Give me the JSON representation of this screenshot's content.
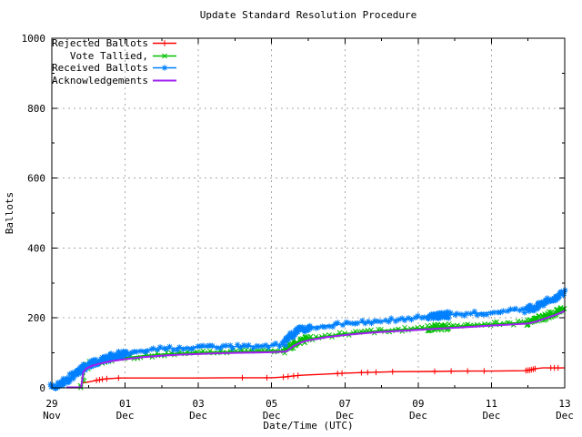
{
  "chart_data": {
    "type": "line",
    "title": "Update Standard Resolution Procedure",
    "xlabel": "Date/Time (UTC)",
    "ylabel": "Ballots",
    "ylim": [
      0,
      1000
    ],
    "xlim_days": [
      0,
      14
    ],
    "x_axis_note": "days measured from 29 Nov 00:00 UTC to 13 Dec",
    "grid": "on",
    "grid_color": "#a8a8a8",
    "legend_position": "top-left",
    "x_ticks": [
      {
        "day": 0,
        "line1": "29",
        "line2": "Nov"
      },
      {
        "day": 2,
        "line1": "01",
        "line2": "Dec"
      },
      {
        "day": 4,
        "line1": "03",
        "line2": "Dec"
      },
      {
        "day": 6,
        "line1": "05",
        "line2": "Dec"
      },
      {
        "day": 8,
        "line1": "07",
        "line2": "Dec"
      },
      {
        "day": 10,
        "line1": "09",
        "line2": "Dec"
      },
      {
        "day": 12,
        "line1": "11",
        "line2": "Dec"
      },
      {
        "day": 14,
        "line1": "13",
        "line2": "Dec"
      }
    ],
    "x_minor_days": [
      1,
      3,
      5,
      7,
      9,
      11,
      13
    ],
    "y_ticks": [
      0,
      200,
      400,
      600,
      800,
      1000
    ],
    "y_minor": [
      100,
      300,
      500,
      700,
      900
    ],
    "series": [
      {
        "name": "Rejected Ballots",
        "color": "#ff0000",
        "marker": "plus",
        "line_width": 1.4,
        "points": [
          [
            0.8,
            0
          ],
          [
            0.84,
            14
          ],
          [
            1.0,
            17
          ],
          [
            1.2,
            21
          ],
          [
            1.35,
            24
          ],
          [
            1.5,
            26
          ],
          [
            1.85,
            28
          ],
          [
            2.5,
            28
          ],
          [
            4.0,
            28
          ],
          [
            5.2,
            29
          ],
          [
            6.0,
            29
          ],
          [
            6.35,
            31
          ],
          [
            6.6,
            34
          ],
          [
            6.8,
            36
          ],
          [
            7.0,
            37
          ],
          [
            7.8,
            41
          ],
          [
            8.0,
            42
          ],
          [
            8.6,
            44
          ],
          [
            9.0,
            45
          ],
          [
            9.3,
            46
          ],
          [
            10.4,
            47
          ],
          [
            11.2,
            48
          ],
          [
            12.0,
            48
          ],
          [
            12.9,
            49
          ],
          [
            13.0,
            50
          ],
          [
            13.1,
            52
          ],
          [
            13.2,
            55
          ],
          [
            13.4,
            57
          ],
          [
            14.0,
            57
          ]
        ],
        "marker_days": [
          1.22,
          1.3,
          1.38,
          1.5,
          1.82,
          5.2,
          5.87,
          6.32,
          6.45,
          6.6,
          6.72,
          7.8,
          7.92,
          8.45,
          8.62,
          8.85,
          9.3,
          10.45,
          10.9,
          11.35,
          11.8,
          12.94,
          12.99,
          13.04,
          13.09,
          13.14,
          13.19,
          13.62,
          13.72,
          13.82
        ]
      },
      {
        "name": "Vote Tallied,",
        "color": "#00c000",
        "marker": "cross",
        "line_width": 1.4,
        "points": [
          [
            0.82,
            1
          ],
          [
            0.86,
            30
          ],
          [
            0.9,
            60
          ],
          [
            1.0,
            66
          ],
          [
            1.2,
            72
          ],
          [
            1.4,
            77
          ],
          [
            1.7,
            82
          ],
          [
            2.0,
            86
          ],
          [
            2.5,
            92
          ],
          [
            3.0,
            96
          ],
          [
            3.5,
            99
          ],
          [
            4.0,
            101
          ],
          [
            4.5,
            103
          ],
          [
            5.0,
            104
          ],
          [
            5.5,
            105
          ],
          [
            6.0,
            106
          ],
          [
            6.35,
            107
          ],
          [
            6.5,
            118
          ],
          [
            6.7,
            130
          ],
          [
            6.9,
            137
          ],
          [
            7.0,
            140
          ],
          [
            7.5,
            148
          ],
          [
            8.0,
            155
          ],
          [
            8.5,
            160
          ],
          [
            9.0,
            164
          ],
          [
            9.5,
            167
          ],
          [
            10.0,
            170
          ],
          [
            10.5,
            173
          ],
          [
            11.0,
            176
          ],
          [
            11.5,
            179
          ],
          [
            12.0,
            182
          ],
          [
            12.5,
            185
          ],
          [
            13.0,
            188
          ],
          [
            13.2,
            193
          ],
          [
            13.4,
            200
          ],
          [
            13.6,
            208
          ],
          [
            13.8,
            216
          ],
          [
            14.0,
            226
          ]
        ],
        "scatter": {
          "step": 0.09,
          "jitter_x": 1.2,
          "jitter_y": 2.2,
          "dense_step": 0.032,
          "dense_jitter_x": 2,
          "dense_jitter_y": 3.5,
          "dense_ranges": [
            [
              0.82,
              1.05
            ],
            [
              6.35,
              7.05
            ],
            [
              10.25,
              10.8
            ],
            [
              12.95,
              14.0
            ]
          ]
        }
      },
      {
        "name": "Received Ballots",
        "color": "#0080ff",
        "marker": "star",
        "line_width": 1.4,
        "points": [
          [
            0.0,
            2
          ],
          [
            0.15,
            8
          ],
          [
            0.3,
            16
          ],
          [
            0.45,
            26
          ],
          [
            0.6,
            37
          ],
          [
            0.75,
            48
          ],
          [
            0.9,
            58
          ],
          [
            1.0,
            64
          ],
          [
            1.2,
            73
          ],
          [
            1.4,
            81
          ],
          [
            1.6,
            88
          ],
          [
            1.8,
            94
          ],
          [
            2.0,
            99
          ],
          [
            2.3,
            105
          ],
          [
            2.6,
            109
          ],
          [
            3.0,
            112
          ],
          [
            3.5,
            114
          ],
          [
            4.0,
            116
          ],
          [
            4.5,
            117
          ],
          [
            5.0,
            118
          ],
          [
            5.5,
            119
          ],
          [
            6.0,
            121
          ],
          [
            6.3,
            124
          ],
          [
            6.45,
            141
          ],
          [
            6.6,
            154
          ],
          [
            6.75,
            164
          ],
          [
            6.9,
            169
          ],
          [
            7.0,
            171
          ],
          [
            7.5,
            178
          ],
          [
            8.0,
            183
          ],
          [
            8.5,
            187
          ],
          [
            9.0,
            191
          ],
          [
            9.5,
            196
          ],
          [
            10.0,
            201
          ],
          [
            10.5,
            205
          ],
          [
            10.8,
            208
          ],
          [
            11.0,
            210
          ],
          [
            11.5,
            213
          ],
          [
            12.0,
            216
          ],
          [
            12.5,
            220
          ],
          [
            13.0,
            224
          ],
          [
            13.2,
            231
          ],
          [
            13.4,
            240
          ],
          [
            13.6,
            250
          ],
          [
            13.8,
            261
          ],
          [
            14.0,
            272
          ]
        ],
        "scatter": {
          "step": 0.09,
          "jitter_x": 1.2,
          "jitter_y": 2.2,
          "dense_step": 0.032,
          "dense_jitter_x": 2,
          "dense_jitter_y": 3.5,
          "dense_ranges": [
            [
              0.0,
              2.1
            ],
            [
              6.35,
              7.05
            ],
            [
              10.3,
              10.85
            ],
            [
              12.95,
              14.0
            ]
          ]
        }
      },
      {
        "name": "Acknowledgements",
        "color": "#a020f0",
        "marker": "none",
        "line_width": 2.1,
        "points": [
          [
            0.4,
            1
          ],
          [
            0.8,
            1
          ],
          [
            0.86,
            45
          ],
          [
            0.95,
            56
          ],
          [
            1.1,
            63
          ],
          [
            1.3,
            69
          ],
          [
            1.6,
            76
          ],
          [
            2.0,
            82
          ],
          [
            2.5,
            88
          ],
          [
            3.0,
            92
          ],
          [
            3.5,
            95
          ],
          [
            4.0,
            97
          ],
          [
            4.5,
            99
          ],
          [
            5.0,
            100
          ],
          [
            5.5,
            101
          ],
          [
            6.0,
            102
          ],
          [
            6.4,
            104
          ],
          [
            6.6,
            120
          ],
          [
            6.8,
            130
          ],
          [
            7.0,
            136
          ],
          [
            7.5,
            145
          ],
          [
            8.0,
            151
          ],
          [
            8.5,
            156
          ],
          [
            9.0,
            160
          ],
          [
            9.5,
            163
          ],
          [
            10.0,
            166
          ],
          [
            10.5,
            169
          ],
          [
            11.0,
            172
          ],
          [
            11.5,
            175
          ],
          [
            12.0,
            178
          ],
          [
            12.5,
            181
          ],
          [
            13.0,
            184
          ],
          [
            13.2,
            189
          ],
          [
            13.4,
            196
          ],
          [
            13.6,
            203
          ],
          [
            13.8,
            211
          ],
          [
            14.0,
            220
          ]
        ]
      }
    ]
  }
}
